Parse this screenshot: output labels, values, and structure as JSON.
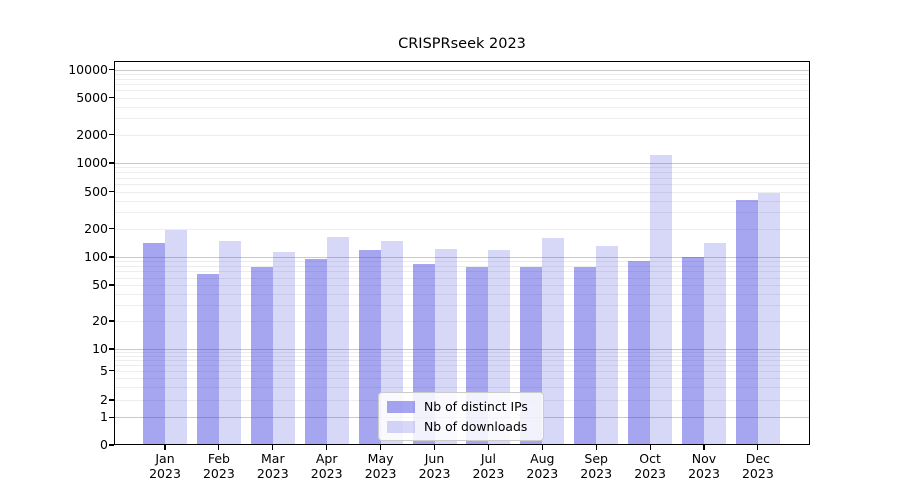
{
  "chart_data": {
    "type": "bar",
    "title": "CRISPRseek 2023",
    "yscale": "symlog",
    "ylim": [
      0,
      10000
    ],
    "grid": true,
    "legend_position": "lower center",
    "ytick_labels": [
      "0",
      "1",
      "2",
      "5",
      "10",
      "20",
      "50",
      "100",
      "200",
      "500",
      "1000",
      "2000",
      "5000",
      "10000"
    ],
    "categories": [
      {
        "month": "Jan",
        "year": "2023"
      },
      {
        "month": "Feb",
        "year": "2023"
      },
      {
        "month": "Mar",
        "year": "2023"
      },
      {
        "month": "Apr",
        "year": "2023"
      },
      {
        "month": "May",
        "year": "2023"
      },
      {
        "month": "Jun",
        "year": "2023"
      },
      {
        "month": "Jul",
        "year": "2023"
      },
      {
        "month": "Aug",
        "year": "2023"
      },
      {
        "month": "Sep",
        "year": "2023"
      },
      {
        "month": "Oct",
        "year": "2023"
      },
      {
        "month": "Nov",
        "year": "2023"
      },
      {
        "month": "Dec",
        "year": "2023"
      }
    ],
    "series": [
      {
        "name": "Nb of distinct IPs",
        "color": "rgba(64,64,224,0.47)",
        "values": [
          140,
          65,
          79,
          96,
          118,
          84,
          79,
          79,
          78,
          90,
          100,
          410
        ]
      },
      {
        "name": "Nb of downloads",
        "color": "rgba(64,64,224,0.21)",
        "values": [
          195,
          148,
          113,
          163,
          148,
          121,
          120,
          159,
          130,
          1220,
          139,
          485
        ]
      }
    ]
  }
}
